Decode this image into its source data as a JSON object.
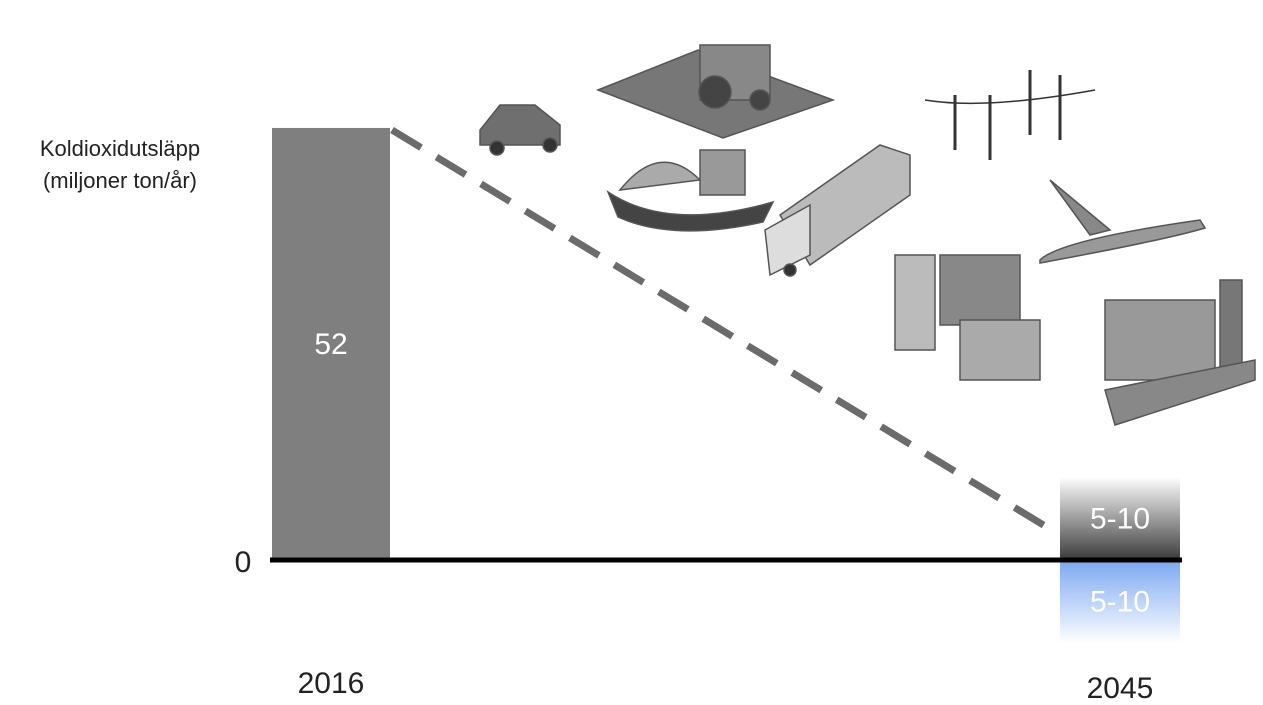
{
  "chart_data": {
    "type": "bar",
    "ylabel": "Koldioxidutsläpp (miljoner ton/år)",
    "categories": [
      "2016",
      "2045"
    ],
    "series": [
      {
        "colors": [
          "#7f7f7f",
          "#3a3a3a"
        ],
        "values": [
          52,
          10
        ],
        "value_labels": [
          "52",
          "5-10"
        ]
      },
      {
        "colors": [
          null,
          "#7ba7f2"
        ],
        "values": [
          null,
          -10
        ],
        "value_labels": [
          null,
          "5-10"
        ]
      }
    ],
    "ylim": [
      -17.45,
      67.4
    ],
    "yticks": [
      0
    ]
  }
}
